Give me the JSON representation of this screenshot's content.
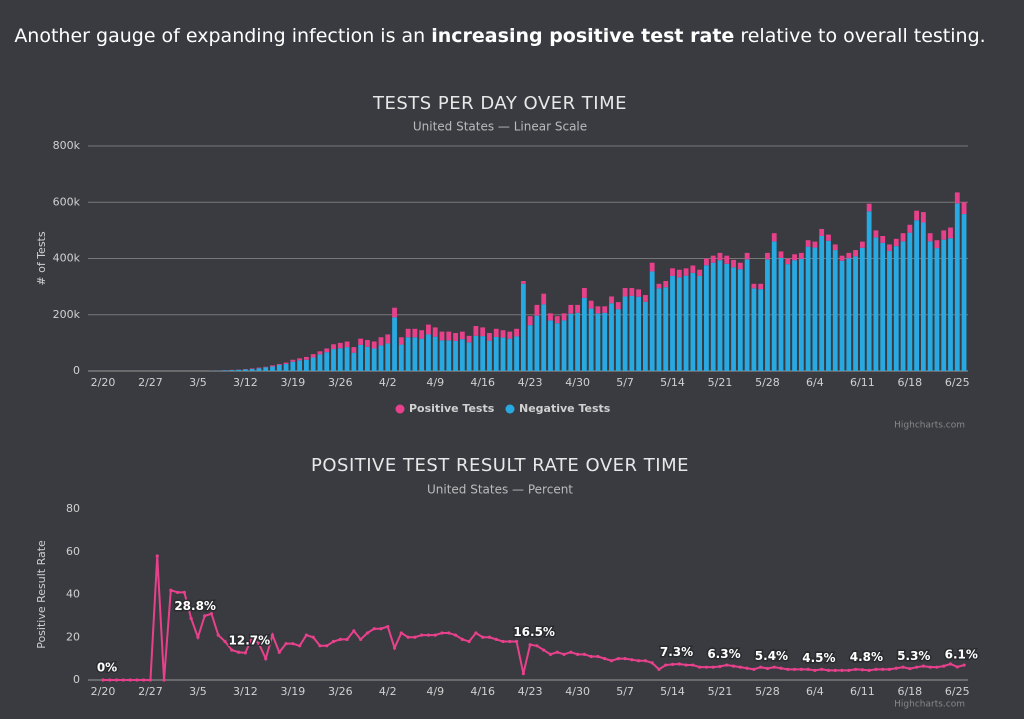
{
  "headline": {
    "before": "Another gauge of expanding infection is an ",
    "bold": "increasing positive test rate",
    "after": " relative to overall testing."
  },
  "chart_data": [
    {
      "type": "stacked-bar",
      "title": "TESTS PER DAY OVER TIME",
      "subtitle": "United States — Linear Scale",
      "y_label": "# of Tests",
      "credits": "Highcharts.com",
      "grid": true,
      "legend": "bottom",
      "categories": [
        "2/20",
        null,
        null,
        null,
        null,
        null,
        null,
        "2/27",
        null,
        null,
        null,
        null,
        null,
        null,
        "3/5",
        null,
        null,
        null,
        null,
        null,
        null,
        "3/12",
        null,
        null,
        null,
        null,
        null,
        null,
        "3/19",
        null,
        null,
        null,
        null,
        null,
        null,
        "3/26",
        null,
        null,
        null,
        null,
        null,
        null,
        "4/2",
        null,
        null,
        null,
        null,
        null,
        null,
        "4/9",
        null,
        null,
        null,
        null,
        null,
        null,
        "4/16",
        null,
        null,
        null,
        null,
        null,
        null,
        "4/23",
        null,
        null,
        null,
        null,
        null,
        null,
        "4/30",
        null,
        null,
        null,
        null,
        null,
        null,
        "5/7",
        null,
        null,
        null,
        null,
        null,
        null,
        "5/14",
        null,
        null,
        null,
        null,
        null,
        null,
        "5/21",
        null,
        null,
        null,
        null,
        null,
        null,
        "5/28",
        null,
        null,
        null,
        null,
        null,
        null,
        "6/4",
        null,
        null,
        null,
        null,
        null,
        null,
        "6/11",
        null,
        null,
        null,
        null,
        null,
        null,
        "6/18",
        null,
        null,
        null,
        null,
        null,
        null,
        "6/25",
        null
      ],
      "ylim": [
        0,
        800000
      ],
      "yticks": [
        0,
        {
          "value": 200000,
          "label": "200k"
        },
        {
          "value": 400000,
          "label": "400k"
        },
        {
          "value": 600000,
          "label": "600k"
        },
        {
          "value": 800000,
          "label": "800k"
        }
      ],
      "series": [
        {
          "name": "Positive Tests",
          "color": "#e8418c",
          "values": [
            0,
            0,
            0,
            0,
            0,
            0,
            0,
            0,
            0,
            0,
            0,
            0,
            0,
            0,
            0,
            0,
            300,
            400,
            500,
            600,
            700,
            900,
            1800,
            2000,
            1500,
            4000,
            3000,
            5000,
            7000,
            7000,
            10000,
            12000,
            11000,
            13000,
            17000,
            19000,
            20000,
            20000,
            22000,
            24000,
            25000,
            29000,
            32000,
            34000,
            26000,
            30000,
            30000,
            30000,
            35000,
            33000,
            31000,
            31000,
            28000,
            27000,
            23000,
            35000,
            31000,
            27000,
            29000,
            26000,
            25000,
            27000,
            10000,
            32000,
            38000,
            38000,
            25000,
            25000,
            25000,
            31000,
            28000,
            35000,
            28000,
            25000,
            23000,
            24000,
            25000,
            30000,
            28000,
            26000,
            24000,
            31000,
            16000,
            22000,
            27000,
            27000,
            26000,
            26000,
            22000,
            24000,
            25000,
            26000,
            29000,
            26000,
            23000,
            23000,
            16000,
            19000,
            23000,
            29000,
            23000,
            20000,
            21000,
            21000,
            23000,
            21000,
            25000,
            22000,
            20000,
            18000,
            19000,
            22000,
            22000,
            27000,
            25000,
            24000,
            23000,
            26000,
            29000,
            28000,
            34000,
            37000,
            29000,
            28000,
            33000,
            38000,
            39000,
            42000
          ]
        },
        {
          "name": "Negative Tests",
          "color": "#29a9e1",
          "values": [
            0,
            0,
            0,
            0,
            0,
            0,
            0,
            0,
            0,
            0,
            0,
            0,
            0,
            0,
            0,
            0,
            700,
            1600,
            2500,
            3400,
            4300,
            6100,
            7200,
            10000,
            13500,
            16000,
            22000,
            25000,
            33000,
            38000,
            40000,
            48000,
            59000,
            67000,
            78000,
            81000,
            85000,
            65000,
            93000,
            86000,
            80000,
            91000,
            98000,
            191000,
            94000,
            120000,
            120000,
            115000,
            130000,
            122000,
            109000,
            109000,
            107000,
            113000,
            102000,
            125000,
            124000,
            108000,
            121000,
            119000,
            115000,
            123000,
            310000,
            163000,
            197000,
            237000,
            180000,
            170000,
            180000,
            204000,
            207000,
            260000,
            222000,
            205000,
            207000,
            241000,
            220000,
            265000,
            267000,
            264000,
            246000,
            354000,
            294000,
            298000,
            338000,
            333000,
            339000,
            349000,
            338000,
            376000,
            385000,
            394000,
            381000,
            369000,
            362000,
            397000,
            294000,
            291000,
            397000,
            461000,
            402000,
            380000,
            394000,
            399000,
            442000,
            439000,
            480000,
            463000,
            430000,
            392000,
            401000,
            408000,
            438000,
            568000,
            475000,
            456000,
            427000,
            444000,
            461000,
            492000,
            536000,
            528000,
            461000,
            437000,
            467000,
            472000,
            596000,
            558000
          ]
        }
      ]
    },
    {
      "type": "line",
      "title": "POSITIVE TEST RESULT RATE OVER TIME",
      "subtitle": "United States — Percent",
      "y_label": "Positive Result Rate",
      "credits": "Highcharts.com",
      "grid": false,
      "color": "#e8418c",
      "categories": [
        "2/20",
        null,
        null,
        null,
        null,
        null,
        null,
        "2/27",
        null,
        null,
        null,
        null,
        null,
        null,
        "3/5",
        null,
        null,
        null,
        null,
        null,
        null,
        "3/12",
        null,
        null,
        null,
        null,
        null,
        null,
        "3/19",
        null,
        null,
        null,
        null,
        null,
        null,
        "3/26",
        null,
        null,
        null,
        null,
        null,
        null,
        "4/2",
        null,
        null,
        null,
        null,
        null,
        null,
        "4/9",
        null,
        null,
        null,
        null,
        null,
        null,
        "4/16",
        null,
        null,
        null,
        null,
        null,
        null,
        "4/23",
        null,
        null,
        null,
        null,
        null,
        null,
        "4/30",
        null,
        null,
        null,
        null,
        null,
        null,
        "5/7",
        null,
        null,
        null,
        null,
        null,
        null,
        "5/14",
        null,
        null,
        null,
        null,
        null,
        null,
        "5/21",
        null,
        null,
        null,
        null,
        null,
        null,
        "5/28",
        null,
        null,
        null,
        null,
        null,
        null,
        "6/4",
        null,
        null,
        null,
        null,
        null,
        null,
        "6/11",
        null,
        null,
        null,
        null,
        null,
        null,
        "6/18",
        null,
        null,
        null,
        null,
        null,
        null,
        "6/25",
        null
      ],
      "ylim": [
        0,
        80
      ],
      "yticks": [
        0,
        20,
        40,
        60,
        80
      ],
      "values": [
        0,
        0,
        0,
        0,
        0,
        0,
        0,
        0,
        58,
        0,
        42,
        41,
        41,
        28.8,
        20,
        30,
        31,
        21,
        18,
        14,
        13,
        12.7,
        20,
        17,
        10,
        21,
        13,
        17,
        17,
        16,
        21,
        20,
        16,
        16,
        18,
        19,
        19,
        23,
        19,
        22,
        24,
        24,
        25,
        15,
        22,
        20,
        20,
        21,
        21,
        21,
        22,
        22,
        21,
        19,
        18,
        22,
        20,
        20,
        19,
        18,
        18,
        18,
        3,
        16.5,
        16,
        14,
        12,
        13,
        12,
        13,
        12,
        12,
        11,
        11,
        10,
        9,
        10,
        10,
        9.5,
        9,
        9,
        8,
        5,
        7,
        7.3,
        7.5,
        7,
        7,
        6,
        6,
        6,
        6.3,
        7,
        6.5,
        6,
        5.5,
        5,
        6,
        5.4,
        6,
        5.5,
        5,
        5,
        5,
        5,
        4.5,
        5,
        4.5,
        4.5,
        4.5,
        4.5,
        5,
        4.8,
        4.5,
        5,
        5,
        5,
        5.5,
        6,
        5.3,
        6,
        6.5,
        6,
        6,
        6.5,
        7.5,
        6.1,
        7
      ],
      "value_labels": [
        "0%",
        null,
        null,
        null,
        null,
        null,
        null,
        null,
        null,
        null,
        null,
        null,
        null,
        "28.8%",
        null,
        null,
        null,
        null,
        null,
        null,
        null,
        "12.7%",
        null,
        null,
        null,
        null,
        null,
        null,
        null,
        null,
        null,
        null,
        null,
        null,
        null,
        null,
        null,
        null,
        null,
        null,
        null,
        null,
        null,
        null,
        null,
        null,
        null,
        null,
        null,
        null,
        null,
        null,
        null,
        null,
        null,
        null,
        null,
        null,
        null,
        null,
        null,
        null,
        null,
        "16.5%",
        null,
        null,
        null,
        null,
        null,
        null,
        null,
        null,
        null,
        null,
        null,
        null,
        null,
        null,
        null,
        null,
        null,
        null,
        null,
        null,
        "7.3%",
        null,
        null,
        null,
        null,
        null,
        null,
        "6.3%",
        null,
        null,
        null,
        null,
        null,
        null,
        "5.4%",
        null,
        null,
        null,
        null,
        null,
        null,
        "4.5%",
        null,
        null,
        null,
        null,
        null,
        null,
        "4.8%",
        null,
        null,
        null,
        null,
        null,
        null,
        "5.3%",
        null,
        null,
        null,
        null,
        null,
        null,
        "6.1%",
        null
      ]
    }
  ]
}
